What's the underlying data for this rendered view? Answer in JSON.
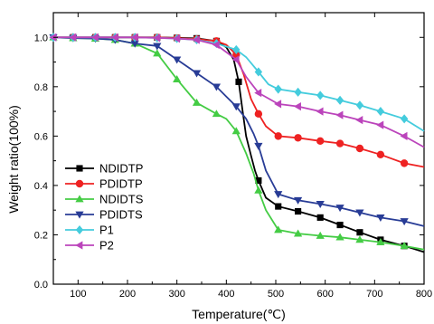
{
  "chart_data": {
    "type": "line",
    "title": "",
    "xlabel": "Temperature(℃)",
    "ylabel": "Weight ratio(100%)",
    "xlim": [
      50,
      800
    ],
    "ylim": [
      0.0,
      1.1
    ],
    "x_ticks": [
      "100",
      "200",
      "300",
      "400",
      "500",
      "600",
      "700",
      "800"
    ],
    "y_ticks": [
      "0.0",
      "0.2",
      "0.4",
      "0.6",
      "0.8",
      "1.0"
    ],
    "grid": false,
    "legend_position": "bottom-left",
    "series": [
      {
        "name": "NDIDTP",
        "color": "#000000",
        "marker": "square",
        "points": [
          [
            50,
            1.0
          ],
          [
            90,
            1.0
          ],
          [
            135,
            1.0
          ],
          [
            175,
            1.0
          ],
          [
            215,
            1.0
          ],
          [
            260,
            1.0
          ],
          [
            300,
            0.998
          ],
          [
            340,
            0.996
          ],
          [
            380,
            0.985
          ],
          [
            400,
            0.96
          ],
          [
            415,
            0.91
          ],
          [
            425,
            0.82
          ],
          [
            433,
            0.7
          ],
          [
            440,
            0.6
          ],
          [
            450,
            0.52
          ],
          [
            458,
            0.46
          ],
          [
            465,
            0.42
          ],
          [
            480,
            0.35
          ],
          [
            505,
            0.315
          ],
          [
            545,
            0.295
          ],
          [
            590,
            0.27
          ],
          [
            630,
            0.24
          ],
          [
            670,
            0.21
          ],
          [
            712,
            0.18
          ],
          [
            760,
            0.155
          ],
          [
            800,
            0.13
          ]
        ],
        "marker_x": [
          90,
          135,
          175,
          215,
          260,
          300,
          340,
          380,
          425,
          465,
          505,
          545,
          590,
          630,
          670,
          712,
          760
        ]
      },
      {
        "name": "PDIDTP",
        "color": "#ee2222",
        "marker": "circle",
        "points": [
          [
            50,
            1.0
          ],
          [
            90,
            1.0
          ],
          [
            135,
            1.0
          ],
          [
            175,
            1.0
          ],
          [
            215,
            1.0
          ],
          [
            260,
            1.0
          ],
          [
            300,
            0.997
          ],
          [
            340,
            0.993
          ],
          [
            380,
            0.985
          ],
          [
            400,
            0.97
          ],
          [
            420,
            0.93
          ],
          [
            435,
            0.85
          ],
          [
            450,
            0.75
          ],
          [
            465,
            0.69
          ],
          [
            480,
            0.64
          ],
          [
            505,
            0.6
          ],
          [
            545,
            0.593
          ],
          [
            590,
            0.58
          ],
          [
            630,
            0.57
          ],
          [
            670,
            0.55
          ],
          [
            712,
            0.525
          ],
          [
            760,
            0.49
          ],
          [
            800,
            0.475
          ]
        ],
        "marker_x": [
          90,
          135,
          175,
          215,
          260,
          300,
          340,
          380,
          420,
          465,
          505,
          545,
          590,
          630,
          670,
          712,
          760
        ]
      },
      {
        "name": "NDIDTS",
        "color": "#44cc44",
        "marker": "triangle-up",
        "points": [
          [
            50,
            1.0
          ],
          [
            90,
            0.997
          ],
          [
            135,
            0.995
          ],
          [
            175,
            0.99
          ],
          [
            215,
            0.975
          ],
          [
            260,
            0.935
          ],
          [
            300,
            0.83
          ],
          [
            340,
            0.735
          ],
          [
            380,
            0.69
          ],
          [
            400,
            0.67
          ],
          [
            420,
            0.62
          ],
          [
            440,
            0.53
          ],
          [
            455,
            0.45
          ],
          [
            465,
            0.38
          ],
          [
            480,
            0.3
          ],
          [
            505,
            0.22
          ],
          [
            545,
            0.205
          ],
          [
            590,
            0.196
          ],
          [
            630,
            0.19
          ],
          [
            670,
            0.18
          ],
          [
            712,
            0.17
          ],
          [
            760,
            0.155
          ],
          [
            800,
            0.14
          ]
        ],
        "marker_x": [
          50,
          90,
          135,
          175,
          215,
          260,
          300,
          340,
          380,
          420,
          465,
          505,
          545,
          590,
          630,
          670,
          712,
          760
        ]
      },
      {
        "name": "PDIDTS",
        "color": "#283c96",
        "marker": "triangle-down",
        "points": [
          [
            50,
            1.0
          ],
          [
            90,
            0.997
          ],
          [
            135,
            0.995
          ],
          [
            175,
            0.99
          ],
          [
            215,
            0.975
          ],
          [
            260,
            0.965
          ],
          [
            300,
            0.91
          ],
          [
            340,
            0.855
          ],
          [
            380,
            0.8
          ],
          [
            400,
            0.76
          ],
          [
            420,
            0.72
          ],
          [
            440,
            0.67
          ],
          [
            455,
            0.61
          ],
          [
            465,
            0.56
          ],
          [
            480,
            0.46
          ],
          [
            505,
            0.365
          ],
          [
            545,
            0.34
          ],
          [
            590,
            0.325
          ],
          [
            630,
            0.31
          ],
          [
            670,
            0.29
          ],
          [
            712,
            0.27
          ],
          [
            760,
            0.255
          ],
          [
            800,
            0.235
          ]
        ],
        "marker_x": [
          50,
          90,
          135,
          175,
          215,
          260,
          300,
          340,
          380,
          420,
          465,
          505,
          545,
          590,
          630,
          670,
          712,
          760
        ]
      },
      {
        "name": "P1",
        "color": "#44ccdd",
        "marker": "diamond",
        "points": [
          [
            50,
            1.0
          ],
          [
            90,
            1.0
          ],
          [
            135,
            1.0
          ],
          [
            175,
            1.0
          ],
          [
            215,
            1.0
          ],
          [
            260,
            0.998
          ],
          [
            300,
            0.995
          ],
          [
            340,
            0.99
          ],
          [
            380,
            0.975
          ],
          [
            420,
            0.95
          ],
          [
            440,
            0.92
          ],
          [
            465,
            0.86
          ],
          [
            485,
            0.81
          ],
          [
            505,
            0.79
          ],
          [
            545,
            0.778
          ],
          [
            590,
            0.765
          ],
          [
            630,
            0.745
          ],
          [
            670,
            0.725
          ],
          [
            712,
            0.7
          ],
          [
            760,
            0.67
          ],
          [
            800,
            0.62
          ]
        ],
        "marker_x": [
          50,
          90,
          135,
          175,
          215,
          260,
          300,
          340,
          380,
          420,
          465,
          505,
          545,
          590,
          630,
          670,
          712,
          760
        ]
      },
      {
        "name": "P2",
        "color": "#bb44bb",
        "marker": "triangle-left",
        "points": [
          [
            50,
            1.0
          ],
          [
            90,
            1.0
          ],
          [
            135,
            1.0
          ],
          [
            175,
            1.0
          ],
          [
            215,
            1.0
          ],
          [
            260,
            0.998
          ],
          [
            300,
            0.995
          ],
          [
            340,
            0.99
          ],
          [
            380,
            0.97
          ],
          [
            420,
            0.91
          ],
          [
            440,
            0.84
          ],
          [
            465,
            0.775
          ],
          [
            505,
            0.73
          ],
          [
            545,
            0.72
          ],
          [
            590,
            0.7
          ],
          [
            630,
            0.685
          ],
          [
            670,
            0.665
          ],
          [
            712,
            0.645
          ],
          [
            760,
            0.6
          ],
          [
            800,
            0.555
          ]
        ],
        "marker_x": [
          50,
          90,
          135,
          175,
          215,
          260,
          300,
          340,
          380,
          420,
          465,
          505,
          545,
          590,
          630,
          670,
          712,
          760
        ]
      }
    ]
  }
}
